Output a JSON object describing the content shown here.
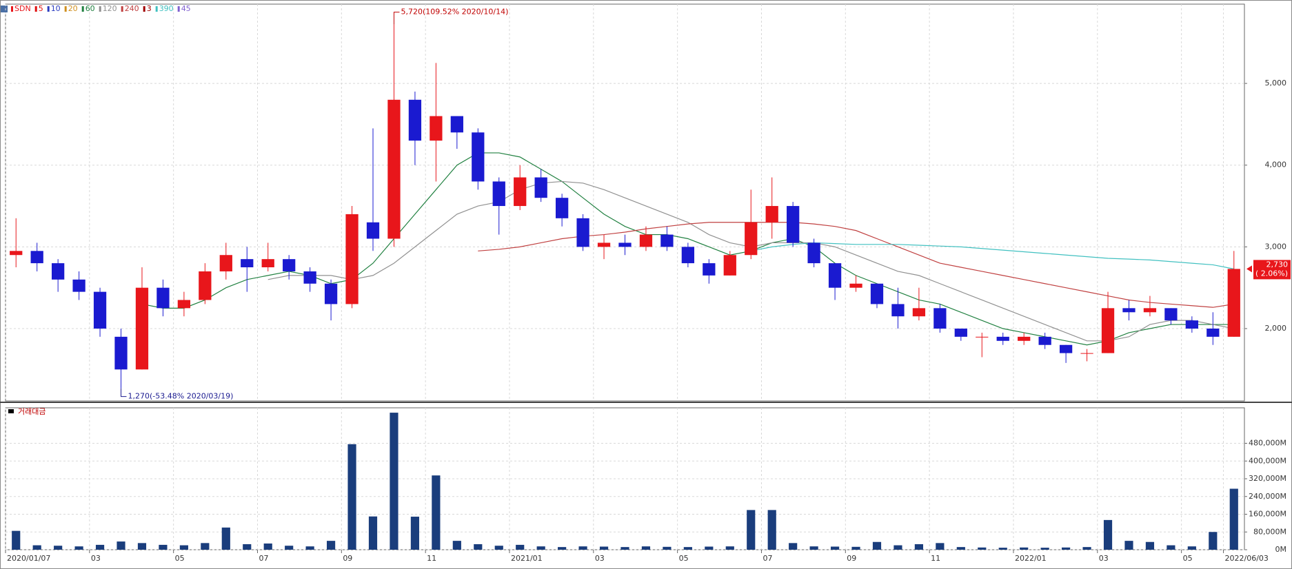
{
  "chart_data": {
    "type": "candlestick",
    "name": "SDN",
    "up_color": "#e8161b",
    "down_color": "#1a1ad0",
    "categories": [
      "2020/01/07",
      null,
      null,
      null,
      "03",
      null,
      null,
      null,
      "05",
      null,
      null,
      null,
      "07",
      null,
      null,
      null,
      "09",
      null,
      null,
      null,
      "11",
      null,
      null,
      null,
      "2021/01",
      null,
      null,
      null,
      "03",
      null,
      null,
      null,
      "05",
      null,
      null,
      null,
      "07",
      null,
      null,
      null,
      "09",
      null,
      null,
      null,
      "11",
      null,
      null,
      null,
      "2022/01",
      null,
      null,
      null,
      "03",
      null,
      null,
      null,
      "05",
      null,
      "2022/06/03"
    ],
    "open": [
      2900,
      2950,
      2800,
      2600,
      2450,
      1900,
      1500,
      2500,
      2250,
      2350,
      2700,
      2850,
      2750,
      2850,
      2700,
      2550,
      2300,
      3300,
      3100,
      4800,
      4300,
      4600,
      4400,
      3800,
      3500,
      3850,
      3600,
      3350,
      3000,
      3050,
      3000,
      3150,
      3000,
      2800,
      2650,
      2900,
      3300,
      3500,
      3050,
      2800,
      2500,
      2550,
      2300,
      2150,
      2250,
      2000,
      1900,
      1900,
      1850,
      1900,
      1800,
      1700,
      1700,
      2250,
      2200,
      2250,
      2100,
      2000,
      1900
    ],
    "high": [
      3350,
      3050,
      2850,
      2700,
      2500,
      2000,
      2750,
      2600,
      2450,
      2800,
      3050,
      3000,
      3050,
      2900,
      2750,
      2600,
      3500,
      4450,
      5720,
      4900,
      5250,
      4600,
      4450,
      3850,
      4000,
      3950,
      3650,
      3400,
      3150,
      3150,
      3250,
      3250,
      3050,
      2850,
      2950,
      3700,
      3850,
      3550,
      3100,
      2800,
      2650,
      2550,
      2500,
      2500,
      2300,
      2000,
      1950,
      1950,
      1950,
      1950,
      1800,
      1750,
      2450,
      2350,
      2400,
      2250,
      2150,
      2200,
      2950
    ],
    "low": [
      2750,
      2700,
      2450,
      2350,
      1900,
      1270,
      1500,
      2150,
      2150,
      2300,
      2600,
      2450,
      2700,
      2600,
      2450,
      2100,
      2250,
      2950,
      3000,
      4000,
      3800,
      4200,
      3700,
      3150,
      3450,
      3550,
      3250,
      2950,
      2850,
      2900,
      2950,
      2950,
      2750,
      2550,
      2650,
      2850,
      3100,
      3000,
      2750,
      2350,
      2450,
      2250,
      2000,
      2100,
      1950,
      1850,
      1650,
      1800,
      1800,
      1750,
      1580,
      1600,
      1700,
      2100,
      2150,
      2050,
      1950,
      1800,
      1900
    ],
    "close": [
      2950,
      2800,
      2600,
      2450,
      2000,
      1500,
      2500,
      2250,
      2350,
      2700,
      2900,
      2750,
      2850,
      2700,
      2550,
      2300,
      3400,
      3100,
      4800,
      4300,
      4600,
      4400,
      3800,
      3500,
      3850,
      3600,
      3350,
      3000,
      3050,
      3000,
      3150,
      3000,
      2800,
      2650,
      2900,
      3300,
      3500,
      3050,
      2800,
      2500,
      2550,
      2300,
      2150,
      2250,
      2000,
      1900,
      1900,
      1850,
      1900,
      1800,
      1700,
      1700,
      2250,
      2200,
      2250,
      2100,
      2000,
      1900,
      2730
    ],
    "ylim": [
      1115,
      5970
    ],
    "yticks": [
      {
        "value": 2000,
        "label": "2,000"
      },
      {
        "value": 3000,
        "label": "3,000"
      },
      {
        "value": 4000,
        "label": "4,000"
      },
      {
        "value": 5000,
        "label": "5,000"
      }
    ],
    "grid": true,
    "legend": [
      {
        "name": "5",
        "color": "#e01010"
      },
      {
        "name": "10",
        "color": "#2a3cc0"
      },
      {
        "name": "20",
        "color": "#d09020"
      },
      {
        "name": "60",
        "color": "#208040"
      },
      {
        "name": "120",
        "color": "#909090"
      },
      {
        "name": "240",
        "color": "#c04040"
      },
      {
        "name": "3",
        "color": "#a00000"
      },
      {
        "name": "390",
        "color": "#40c0c0"
      },
      {
        "name": "45",
        "color": "#8060d0"
      }
    ],
    "series": [
      {
        "name": "60",
        "color": "#208040",
        "values": [
          null,
          null,
          null,
          null,
          null,
          null,
          2300,
          2250,
          2250,
          2350,
          2500,
          2600,
          2650,
          2700,
          2650,
          2550,
          2600,
          2800,
          3100,
          3400,
          3700,
          4000,
          4150,
          4150,
          4100,
          3950,
          3800,
          3600,
          3400,
          3250,
          3150,
          3150,
          3100,
          3000,
          2900,
          2950,
          3050,
          3100,
          3000,
          2800,
          2650,
          2550,
          2450,
          2350,
          2300,
          2200,
          2100,
          2000,
          1950,
          1900,
          1850,
          1800,
          1850,
          1950,
          2000,
          2050,
          2050,
          2050,
          2050
        ]
      },
      {
        "name": "120",
        "color": "#909090",
        "values": [
          null,
          null,
          null,
          null,
          null,
          null,
          null,
          null,
          null,
          null,
          null,
          null,
          2600,
          2650,
          2650,
          2650,
          2600,
          2650,
          2800,
          3000,
          3200,
          3400,
          3500,
          3550,
          3700,
          3780,
          3800,
          3780,
          3700,
          3600,
          3500,
          3400,
          3300,
          3150,
          3050,
          3000,
          3050,
          3050,
          3050,
          3000,
          2900,
          2800,
          2700,
          2650,
          2550,
          2450,
          2350,
          2250,
          2150,
          2050,
          1950,
          1850,
          1850,
          1900,
          2050,
          2100,
          2100,
          2050,
          2000
        ]
      },
      {
        "name": "240",
        "color": "#c04040",
        "values": [
          null,
          null,
          null,
          null,
          null,
          null,
          null,
          null,
          null,
          null,
          null,
          null,
          null,
          null,
          null,
          null,
          null,
          null,
          null,
          null,
          null,
          null,
          2950,
          2970,
          3000,
          3050,
          3100,
          3130,
          3150,
          3180,
          3220,
          3250,
          3280,
          3300,
          3300,
          3300,
          3300,
          3300,
          3280,
          3250,
          3200,
          3100,
          3000,
          2900,
          2800,
          2750,
          2700,
          2650,
          2600,
          2550,
          2500,
          2450,
          2400,
          2350,
          2320,
          2300,
          2280,
          2260,
          2300
        ]
      },
      {
        "name": "390",
        "color": "#40c0c0",
        "values": [
          null,
          null,
          null,
          null,
          null,
          null,
          null,
          null,
          null,
          null,
          null,
          null,
          null,
          null,
          null,
          null,
          null,
          null,
          null,
          null,
          null,
          null,
          null,
          null,
          null,
          null,
          null,
          null,
          null,
          null,
          null,
          null,
          null,
          null,
          null,
          2950,
          3000,
          3030,
          3050,
          3040,
          3030,
          3030,
          3030,
          3020,
          3010,
          3000,
          2980,
          2960,
          2940,
          2920,
          2900,
          2880,
          2860,
          2850,
          2840,
          2820,
          2800,
          2780,
          2730
        ]
      }
    ],
    "annotations": [
      {
        "text": "5,720(109.52% 2020/10/14)"
      },
      {
        "text": "1,270(-53.48% 2020/03/19)"
      }
    ],
    "last_price": {
      "value": 2730,
      "label": "2,730",
      "change": "( 2.06%)"
    },
    "volume": {
      "title": "거래대금",
      "color": "#1a3d7c",
      "values": [
        85000,
        20000,
        18000,
        15000,
        22000,
        37000,
        30000,
        22000,
        20000,
        30000,
        100000,
        25000,
        28000,
        18000,
        15000,
        40000,
        476000,
        150000,
        618000,
        149000,
        335000,
        40000,
        25000,
        18000,
        22000,
        15000,
        12000,
        15000,
        14000,
        12000,
        15000,
        13000,
        12000,
        14000,
        15000,
        179000,
        179000,
        30000,
        15000,
        14000,
        13000,
        35000,
        20000,
        25000,
        30000,
        12000,
        10000,
        9000,
        10000,
        9000,
        10000,
        12000,
        134000,
        40000,
        35000,
        20000,
        15000,
        80000,
        275000
      ],
      "ylim": [
        0,
        640000
      ],
      "yticks": [
        {
          "value": 0,
          "label": "0M"
        },
        {
          "value": 80000,
          "label": "80,000M"
        },
        {
          "value": 160000,
          "label": "160,000M"
        },
        {
          "value": 240000,
          "label": "240,000M"
        },
        {
          "value": 320000,
          "label": "320,000M"
        },
        {
          "value": 400000,
          "label": "400,000M"
        },
        {
          "value": 480000,
          "label": "480,000M"
        }
      ]
    }
  }
}
